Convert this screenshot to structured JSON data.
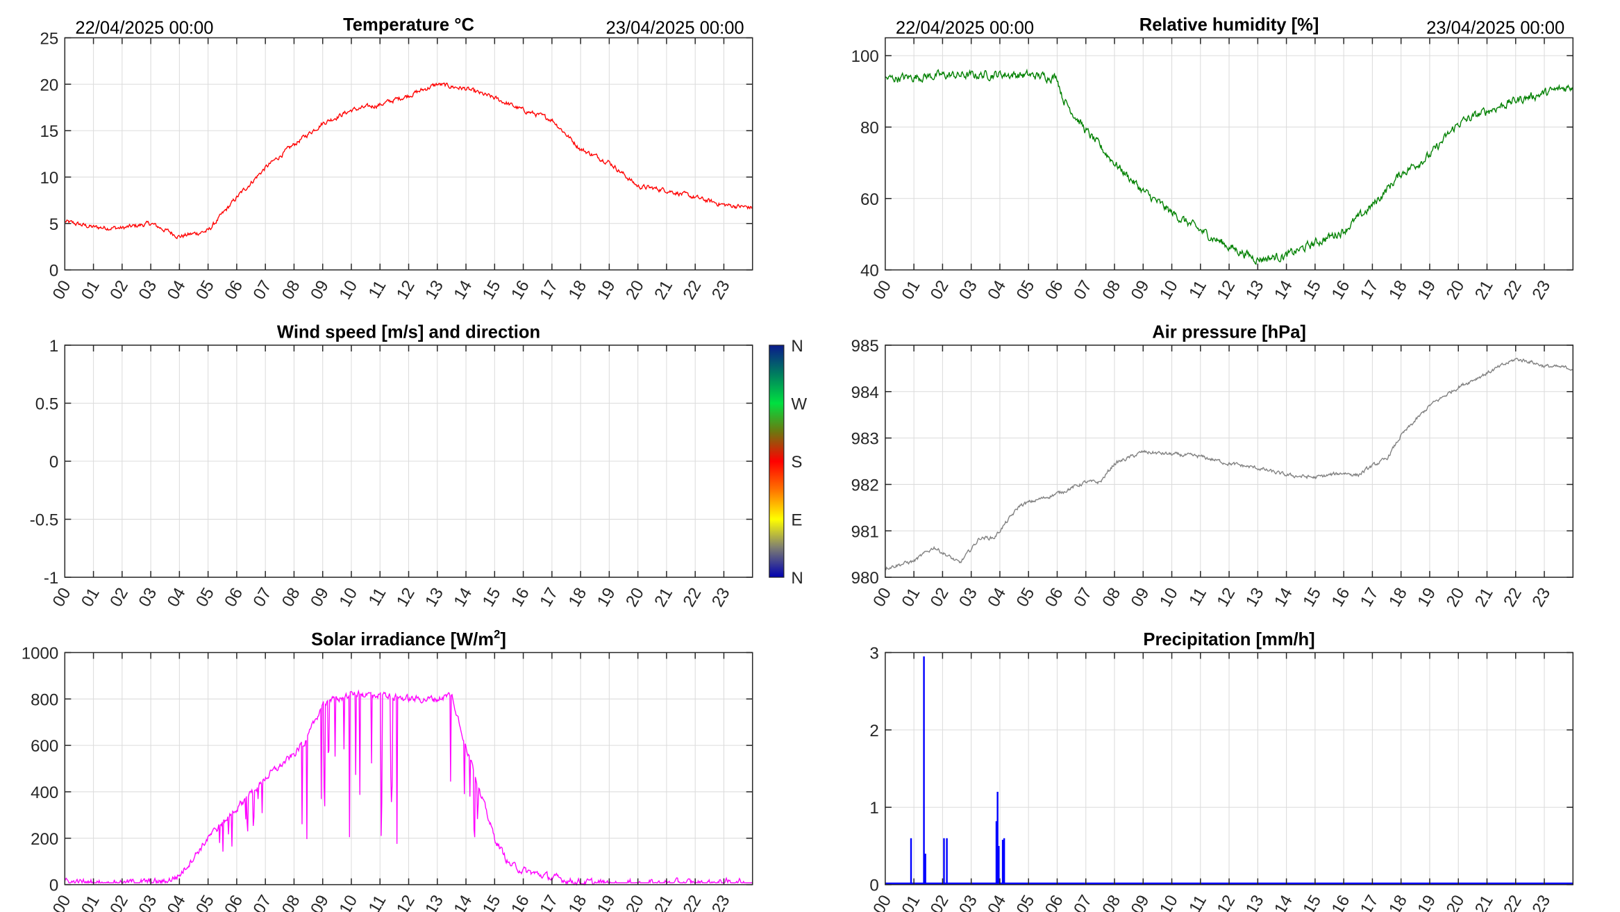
{
  "x_ticks": [
    "00",
    "01",
    "02",
    "03",
    "04",
    "05",
    "06",
    "07",
    "08",
    "09",
    "10",
    "11",
    "12",
    "13",
    "14",
    "15",
    "16",
    "17",
    "18",
    "19",
    "20",
    "21",
    "22",
    "23"
  ],
  "date_start": "22/04/2025 00:00",
  "date_end": "23/04/2025 00:00",
  "chart_data": [
    {
      "id": "temperature",
      "type": "line",
      "title": "Temperature °C",
      "xlabel": "",
      "ylabel": "",
      "xlim": [
        0,
        24
      ],
      "ylim": [
        0,
        25
      ],
      "yticks": [
        "0",
        "5",
        "10",
        "15",
        "20",
        "25"
      ],
      "color": "#ff0000",
      "grid": true,
      "show_dates": true,
      "x_hours": [
        0,
        1,
        2,
        3,
        4,
        5,
        6,
        7,
        8,
        9,
        10,
        11,
        12,
        13,
        14,
        15,
        16,
        17,
        18,
        19,
        20,
        21,
        22,
        23,
        24
      ],
      "values": [
        5.2,
        4.6,
        4.5,
        5.0,
        3.6,
        4.2,
        7.8,
        11.0,
        13.5,
        15.8,
        17.2,
        17.8,
        18.8,
        20.0,
        19.5,
        18.5,
        17.2,
        16.2,
        13.0,
        11.6,
        9.0,
        8.6,
        7.8,
        7.0,
        6.7
      ],
      "noise": 0.25
    },
    {
      "id": "humidity",
      "type": "line",
      "title": "Relative humidity [%]",
      "xlabel": "",
      "ylabel": "",
      "xlim": [
        0,
        24
      ],
      "ylim": [
        40,
        105
      ],
      "yticks": [
        "40",
        "60",
        "80",
        "100"
      ],
      "ytick_values": [
        40,
        60,
        80,
        100
      ],
      "color": "#008000",
      "grid": true,
      "show_dates": true,
      "x_hours": [
        0,
        1,
        2,
        3,
        4,
        5,
        6,
        6.2,
        7,
        8,
        9,
        10,
        11,
        12,
        13,
        14,
        15,
        16,
        17,
        18,
        19,
        20,
        21,
        22,
        23,
        24
      ],
      "values": [
        93.5,
        94,
        94.5,
        94.5,
        94.8,
        94.5,
        94,
        88,
        79,
        70,
        62,
        56,
        51,
        46.5,
        43,
        44,
        47.5,
        51,
        58,
        67,
        72,
        81,
        84.5,
        87.5,
        89.5,
        91.5
      ],
      "noise": 1.2
    },
    {
      "id": "wind",
      "type": "line",
      "title": "Wind speed [m/s] and direction",
      "xlabel": "",
      "ylabel": "",
      "xlim": [
        0,
        24
      ],
      "ylim": [
        -1,
        1
      ],
      "yticks": [
        "-1",
        "-0.5",
        "0",
        "0.5",
        "1"
      ],
      "ytick_values": [
        -1,
        -0.5,
        0,
        0.5,
        1
      ],
      "grid": true,
      "show_dates": false,
      "x_hours": [],
      "values": [],
      "colorbar": {
        "labels": [
          "N",
          "W",
          "S",
          "E",
          "N"
        ],
        "colors": [
          "#0000a0",
          "#00a040",
          "#ff0000",
          "#ffff00",
          "#0000a0"
        ]
      }
    },
    {
      "id": "pressure",
      "type": "line",
      "title": "Air pressure [hPa]",
      "xlabel": "",
      "ylabel": "",
      "xlim": [
        0,
        24
      ],
      "ylim": [
        980,
        985
      ],
      "yticks": [
        "980",
        "981",
        "982",
        "983",
        "984",
        "985"
      ],
      "color": "#808080",
      "grid": true,
      "show_dates": false,
      "x_hours": [
        0,
        1,
        1.7,
        2.6,
        3.3,
        3.8,
        4.7,
        6,
        7,
        7.5,
        8,
        9,
        10,
        11,
        12,
        13,
        14,
        15,
        16,
        16.5,
        17,
        17.5,
        18,
        19,
        20,
        21,
        22,
        22.5,
        23,
        24
      ],
      "values": [
        980.2,
        980.35,
        980.65,
        980.3,
        980.85,
        980.85,
        981.55,
        981.8,
        982.05,
        982.05,
        982.45,
        982.7,
        982.65,
        982.6,
        982.45,
        982.35,
        982.2,
        982.15,
        982.25,
        982.2,
        982.4,
        982.55,
        983.05,
        983.7,
        984.1,
        984.4,
        984.7,
        984.65,
        984.55,
        984.5
      ],
      "noise": 0.04
    },
    {
      "id": "solar",
      "type": "line",
      "title": "Solar irradiance [W/m²]",
      "title_main": "Solar irradiance [W/m",
      "title_sup": "2",
      "title_end": "]",
      "xlabel": "",
      "ylabel": "",
      "xlim": [
        0,
        24
      ],
      "ylim": [
        0,
        1000
      ],
      "yticks": [
        "0",
        "200",
        "400",
        "600",
        "800",
        "1000"
      ],
      "color": "#ff00ff",
      "grid": true,
      "show_dates": false,
      "x_hours": [
        0,
        3,
        3.5,
        4,
        5,
        6,
        7,
        8,
        8.5,
        9,
        10,
        11,
        12,
        13,
        13.5,
        14,
        14.5,
        15,
        15.5,
        16,
        17,
        18,
        19,
        24
      ],
      "values": [
        10,
        10,
        12,
        40,
        200,
        330,
        460,
        560,
        640,
        780,
        820,
        820,
        800,
        800,
        820,
        600,
        400,
        200,
        90,
        60,
        30,
        10,
        5,
        10
      ],
      "noise": 15,
      "dips": [
        [
          5.2,
          5.9,
          0.5
        ],
        [
          6.0,
          7.0,
          0.45
        ],
        [
          8.2,
          8.5,
          0.7
        ],
        [
          8.9,
          11.6,
          0.8
        ],
        [
          13.4,
          14.6,
          0.7
        ]
      ]
    },
    {
      "id": "precipitation",
      "type": "bar",
      "title": "Precipitation [mm/h]",
      "xlabel": "",
      "ylabel": "",
      "xlim": [
        0,
        24
      ],
      "ylim": [
        0,
        3
      ],
      "yticks": [
        "0",
        "1",
        "2",
        "3"
      ],
      "color": "#0000ff",
      "grid": true,
      "show_dates": false,
      "spikes": [
        [
          0.9,
          0.6
        ],
        [
          1.35,
          2.95
        ],
        [
          1.4,
          0.4
        ],
        [
          2.05,
          0.6
        ],
        [
          2.15,
          0.6
        ],
        [
          3.88,
          0.82
        ],
        [
          3.92,
          1.2
        ],
        [
          3.96,
          0.5
        ],
        [
          4.1,
          0.58
        ],
        [
          4.15,
          0.6
        ]
      ]
    }
  ]
}
